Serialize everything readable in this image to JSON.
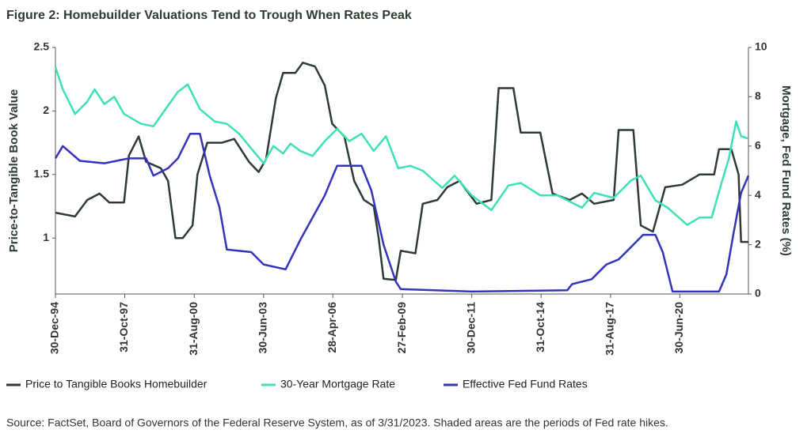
{
  "chart_data": {
    "type": "line",
    "title": "Figure 2: Homebuilder Valuations Tend to Trough When Rates Peak",
    "y_label": "Price-to-Tangible Book Value",
    "y2_label": "Mortgage, Fed Fund Rates (%)",
    "source": "Source: FactSet, Board of Governors of the Federal Reserve System, as of 3/31/2023. Shaded areas are the periods of Fed rate hikes.",
    "xlim": [
      1995,
      2023.3
    ],
    "xticks": [
      {
        "value": 1995.0,
        "label": "30-Dec-94"
      },
      {
        "value": 1997.83,
        "label": "31-Oct-97"
      },
      {
        "value": 2000.67,
        "label": "31-Aug-00"
      },
      {
        "value": 2003.5,
        "label": "30-Jun-03"
      },
      {
        "value": 2006.33,
        "label": "28-Apr-06"
      },
      {
        "value": 2009.17,
        "label": "27-Feb-09"
      },
      {
        "value": 2012.0,
        "label": "30-Dec-11"
      },
      {
        "value": 2014.83,
        "label": "31-Oct-14"
      },
      {
        "value": 2017.67,
        "label": "31-Aug-17"
      },
      {
        "value": 2020.5,
        "label": "30-Jun-20"
      }
    ],
    "ylim": [
      0.56,
      2.5
    ],
    "yticks": [
      1,
      1.5,
      2,
      2.5
    ],
    "y2lim": [
      0,
      10
    ],
    "y2ticks": [
      0,
      2,
      4,
      6,
      8,
      10
    ],
    "series": [
      {
        "name": "Price to Tangible Books Homebuilder",
        "color": "#2d3b32",
        "axis": "y",
        "x": [
          1995,
          1995.8,
          1996.3,
          1996.8,
          1997.2,
          1997.8,
          1998.0,
          1998.4,
          1998.7,
          1999.3,
          1999.6,
          1999.9,
          2000.2,
          2000.6,
          2000.8,
          2001.2,
          2001.8,
          2002.3,
          2002.9,
          2003.3,
          2003.6,
          2004.0,
          2004.3,
          2004.8,
          2005.1,
          2005.6,
          2006.0,
          2006.3,
          2006.8,
          2007.2,
          2007.6,
          2008.0,
          2008.2,
          2008.4,
          2008.9,
          2009.1,
          2009.7,
          2010.0,
          2010.6,
          2011.0,
          2011.5,
          2012.2,
          2012.8,
          2013.1,
          2013.7,
          2014.0,
          2014.8,
          2015.3,
          2016.0,
          2016.5,
          2017.0,
          2017.8,
          2018.0,
          2018.6,
          2018.9,
          2019.4,
          2019.9,
          2020.6,
          2021.3,
          2021.9,
          2022.1,
          2022.6,
          2022.9,
          2023.0,
          2023.3
        ],
        "values": [
          1.2,
          1.17,
          1.3,
          1.35,
          1.28,
          1.28,
          1.65,
          1.8,
          1.6,
          1.55,
          1.45,
          1.0,
          1.0,
          1.1,
          1.5,
          1.75,
          1.75,
          1.78,
          1.6,
          1.52,
          1.62,
          2.1,
          2.3,
          2.3,
          2.38,
          2.35,
          2.2,
          1.9,
          1.8,
          1.45,
          1.3,
          1.25,
          1.0,
          0.68,
          0.67,
          0.9,
          0.88,
          1.27,
          1.3,
          1.4,
          1.45,
          1.27,
          1.3,
          2.18,
          2.18,
          1.83,
          1.83,
          1.35,
          1.3,
          1.35,
          1.27,
          1.3,
          1.85,
          1.85,
          1.1,
          1.05,
          1.4,
          1.42,
          1.5,
          1.5,
          1.7,
          1.7,
          1.5,
          0.97,
          0.97
        ]
      },
      {
        "name": "30-Year Mortgage Rate",
        "color": "#3ee0b8",
        "axis": "y2",
        "x": [
          1995,
          1995.3,
          1995.8,
          1996.3,
          1996.6,
          1997.0,
          1997.4,
          1997.8,
          1998.5,
          1999.0,
          1999.5,
          2000.0,
          2000.4,
          2000.9,
          2001.5,
          2002.0,
          2002.5,
          2003.0,
          2003.5,
          2003.9,
          2004.3,
          2004.6,
          2005.0,
          2005.5,
          2006.0,
          2006.5,
          2007.0,
          2007.5,
          2008.0,
          2008.5,
          2009.0,
          2009.5,
          2010.0,
          2010.8,
          2011.3,
          2012.0,
          2012.8,
          2013.5,
          2014.0,
          2014.8,
          2015.5,
          2016.5,
          2017.0,
          2017.8,
          2018.5,
          2018.9,
          2019.5,
          2020.0,
          2020.8,
          2021.3,
          2021.8,
          2022.2,
          2022.5,
          2022.8,
          2023.0,
          2023.3
        ],
        "values": [
          9.2,
          8.3,
          7.3,
          7.8,
          8.3,
          7.7,
          8.0,
          7.3,
          6.9,
          6.8,
          7.5,
          8.2,
          8.5,
          7.5,
          7.0,
          6.9,
          6.5,
          5.9,
          5.3,
          6.0,
          5.7,
          6.1,
          5.8,
          5.6,
          6.2,
          6.7,
          6.2,
          6.5,
          5.8,
          6.4,
          5.1,
          5.2,
          5.0,
          4.3,
          4.8,
          4.0,
          3.4,
          4.4,
          4.5,
          4.0,
          4.0,
          3.5,
          4.1,
          3.9,
          4.6,
          4.8,
          3.8,
          3.5,
          2.8,
          3.1,
          3.1,
          4.5,
          5.5,
          7.0,
          6.4,
          6.3
        ]
      },
      {
        "name": "Effective Fed Fund Rates",
        "color": "#3333bb",
        "axis": "y2",
        "x": [
          1995,
          1995.3,
          1996.0,
          1997.0,
          1998.0,
          1998.7,
          1999.0,
          1999.6,
          2000.0,
          2000.5,
          2000.9,
          2001.3,
          2001.7,
          2002.0,
          2003.0,
          2003.5,
          2004.4,
          2005.0,
          2006.0,
          2006.5,
          2007.5,
          2007.9,
          2008.4,
          2008.9,
          2009.1,
          2012.0,
          2015.9,
          2016.1,
          2016.9,
          2017.5,
          2018.0,
          2018.5,
          2019.0,
          2019.5,
          2019.8,
          2020.2,
          2022.1,
          2022.4,
          2022.7,
          2023.0,
          2023.3
        ],
        "values": [
          5.5,
          6.0,
          5.4,
          5.3,
          5.5,
          5.5,
          4.8,
          5.1,
          5.5,
          6.5,
          6.5,
          4.8,
          3.5,
          1.8,
          1.7,
          1.2,
          1.0,
          2.2,
          4.0,
          5.2,
          5.2,
          4.2,
          2.0,
          0.5,
          0.2,
          0.1,
          0.15,
          0.4,
          0.6,
          1.2,
          1.4,
          1.9,
          2.4,
          2.4,
          1.7,
          0.1,
          0.1,
          0.8,
          2.5,
          4.1,
          4.8
        ]
      }
    ]
  }
}
